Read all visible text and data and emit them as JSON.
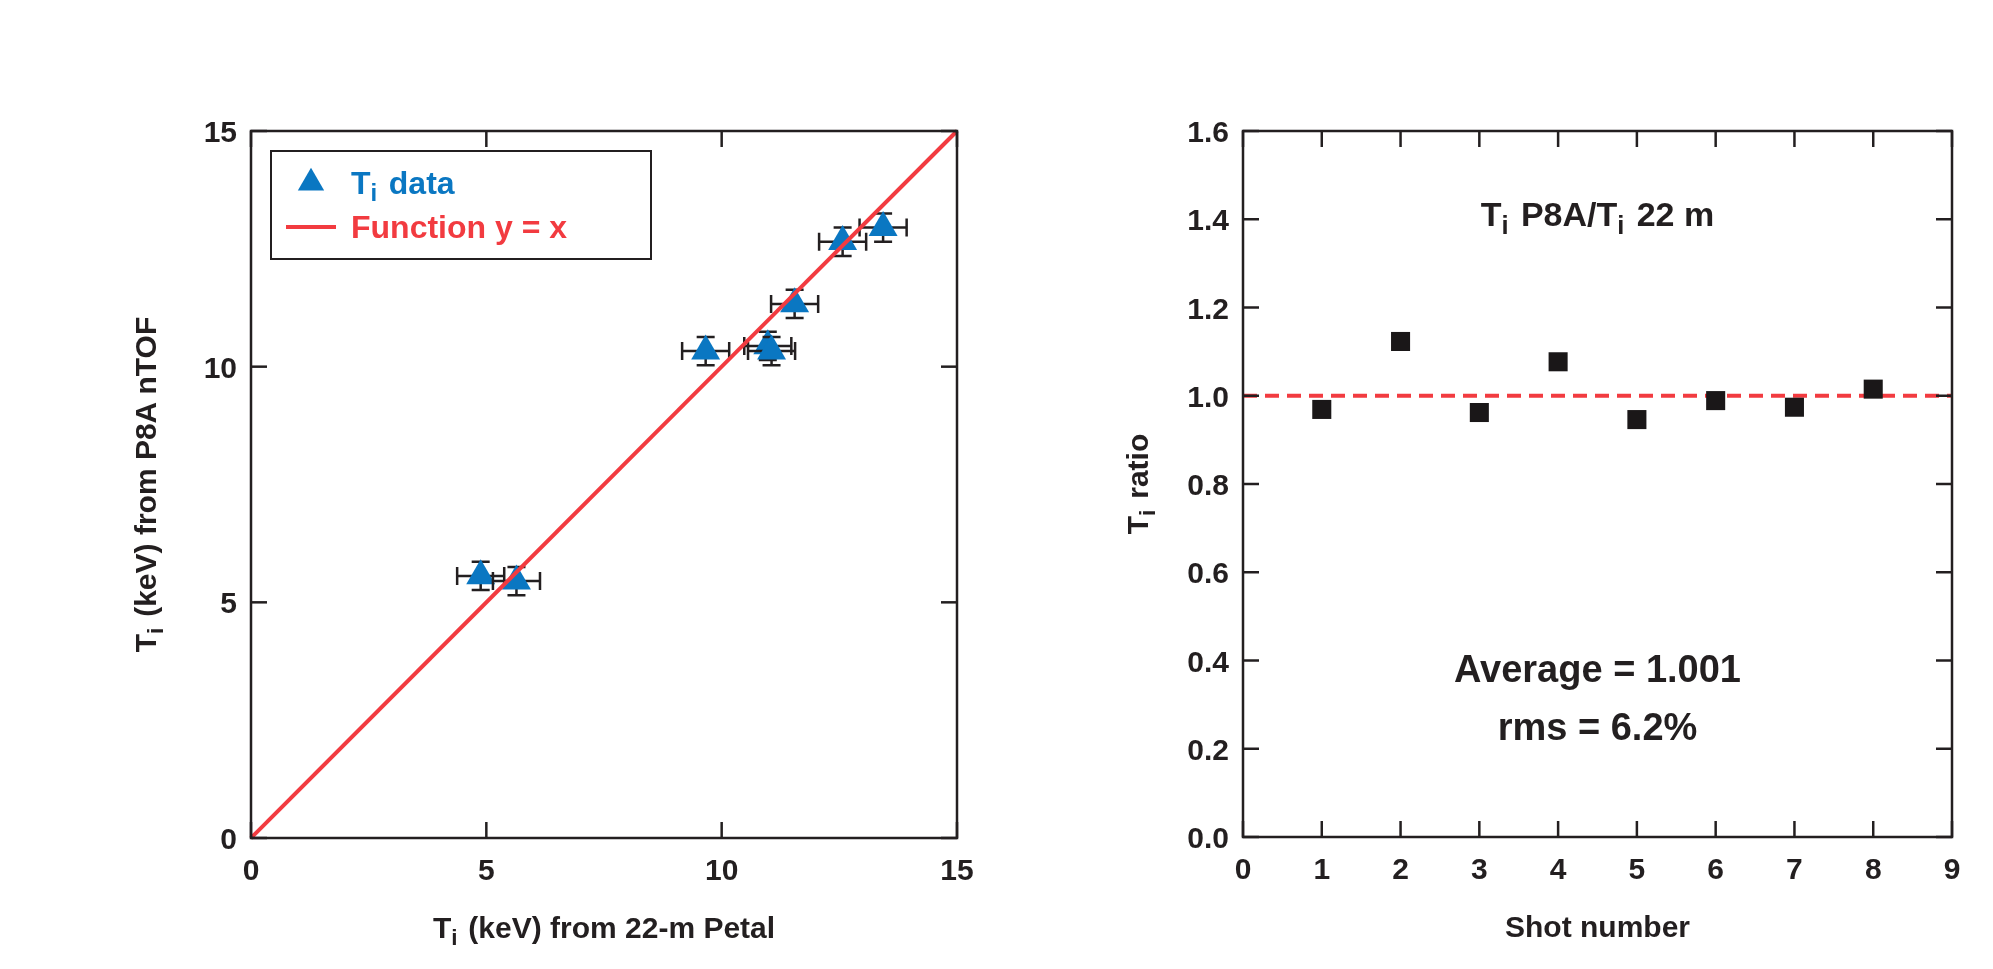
{
  "chart_data": [
    {
      "type": "scatter",
      "xlabel": "T$_{i}$ (keV) from 22-m Petal",
      "ylabel": "T$_{i}$ (keV) from P8A nTOF",
      "xlim": [
        0,
        15
      ],
      "ylim": [
        0,
        15
      ],
      "xticks": [
        0,
        5,
        10,
        15
      ],
      "yticks": [
        0,
        5,
        10,
        15
      ],
      "grid": false,
      "legend": "top left",
      "series": [
        {
          "name": "T$_{i}$ data",
          "type": "scatter",
          "color": "#0a77c2",
          "marker": "triangle",
          "x": [
            4.88,
            5.64,
            9.66,
            10.98,
            11.06,
            11.55,
            12.57,
            13.43
          ],
          "values": [
            5.56,
            5.45,
            10.33,
            10.44,
            10.33,
            11.33,
            12.65,
            12.95
          ],
          "errors": [
            0.3,
            0.3,
            0.3,
            0.3,
            0.3,
            0.3,
            0.3,
            0.3
          ],
          "xerrors": [
            0.5,
            0.5,
            0.5,
            0.5,
            0.5,
            0.5,
            0.5,
            0.5
          ]
        },
        {
          "name": "Function y = x",
          "type": "line",
          "color": "#f23b40",
          "marker": "none",
          "line_style": "solid",
          "x": [
            0,
            15
          ],
          "values": [
            0,
            15
          ]
        }
      ]
    },
    {
      "type": "scatter",
      "xlabel": "Shot number",
      "ylabel": "T$_{i}$ ratio",
      "xlim": [
        0,
        9
      ],
      "ylim": [
        0,
        1.6
      ],
      "xticks": [
        0,
        1,
        2,
        3,
        4,
        5,
        6,
        7,
        8,
        9
      ],
      "yticks": [
        {
          "value": 0,
          "label": "0.0"
        },
        0.2,
        0.4,
        0.6,
        0.8,
        {
          "value": 1,
          "label": "1.0"
        },
        1.2,
        1.4,
        1.6
      ],
      "grid": false,
      "legend": false,
      "annotations": [
        "T$_{i}$ P8A/T$_{i}$ 22 m",
        "Average = 1.001",
        "rms = 6.2%"
      ],
      "ref_lines": [
        {
          "axis": "y",
          "value": 1.0,
          "label": null,
          "color": "#f23b40",
          "line_style": "dashed"
        }
      ],
      "series": [
        {
          "type": "scatter",
          "color": "#1a1718",
          "marker": "square",
          "x": [
            1,
            2,
            3,
            4,
            5,
            6,
            7,
            8
          ],
          "values": [
            0.969,
            1.123,
            0.962,
            1.077,
            0.946,
            0.989,
            0.974,
            1.015
          ]
        }
      ]
    }
  ]
}
